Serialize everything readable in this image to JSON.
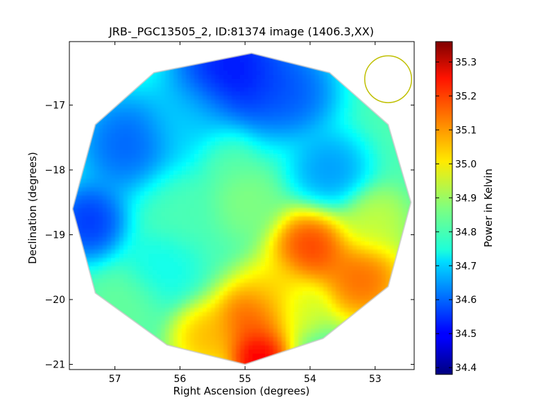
{
  "chart_data": {
    "type": "heatmap",
    "title": "JRB-_PGC13505_2, ID:81374 image (1406.3,XX)",
    "xlabel": "Right Ascension (degrees)",
    "ylabel": "Declination (degrees)",
    "xlim": [
      57.7,
      52.4
    ],
    "ylim": [
      -21.08,
      -16.02
    ],
    "x_ticks": [
      57,
      56,
      55,
      54,
      53
    ],
    "y_ticks": [
      -17,
      -18,
      -19,
      -20,
      -21
    ],
    "x_tick_labels": [
      "57",
      "56",
      "55",
      "54",
      "53"
    ],
    "y_tick_labels": [
      "−17",
      "−18",
      "−19",
      "−20",
      "−21"
    ],
    "grid": false,
    "colormap": "jet",
    "colorbar": {
      "label": "Power in Kelvin",
      "range": [
        34.38,
        35.36
      ],
      "ticks": [
        35.3,
        35.2,
        35.1,
        35.0,
        34.9,
        34.8,
        34.7,
        34.6,
        34.5,
        34.4
      ],
      "tick_labels": [
        "35.3",
        "35.2",
        "35.1",
        "35.0",
        "34.9",
        "34.8",
        "34.7",
        "34.6",
        "34.5",
        "34.4"
      ]
    },
    "footprint": {
      "shape": "dodecagon",
      "vertices": [
        [
          54.9,
          -16.2
        ],
        [
          53.7,
          -16.5
        ],
        [
          52.8,
          -17.3
        ],
        [
          52.45,
          -18.5
        ],
        [
          52.8,
          -19.8
        ],
        [
          53.8,
          -20.6
        ],
        [
          55.0,
          -21.0
        ],
        [
          56.2,
          -20.7
        ],
        [
          57.3,
          -19.9
        ],
        [
          57.65,
          -18.6
        ],
        [
          57.3,
          -17.3
        ],
        [
          56.4,
          -16.5
        ]
      ]
    },
    "beam": {
      "ra": 52.8,
      "dec": -16.6,
      "radius_deg": 0.36,
      "color": "#bfbf00"
    },
    "field_blobs": [
      {
        "ra": 55.2,
        "dec": -16.5,
        "temp": 34.45,
        "spread": 0.7
      },
      {
        "ra": 54.3,
        "dec": -16.8,
        "temp": 34.55,
        "spread": 0.55
      },
      {
        "ra": 56.8,
        "dec": -17.6,
        "temp": 34.55,
        "spread": 0.6
      },
      {
        "ra": 57.4,
        "dec": -18.8,
        "temp": 34.5,
        "spread": 0.45
      },
      {
        "ra": 53.7,
        "dec": -18.0,
        "temp": 34.62,
        "spread": 0.45
      },
      {
        "ra": 55.8,
        "dec": -17.3,
        "temp": 34.7,
        "spread": 0.55
      },
      {
        "ra": 56.0,
        "dec": -18.6,
        "temp": 34.82,
        "spread": 0.5
      },
      {
        "ra": 55.3,
        "dec": -17.8,
        "temp": 34.85,
        "spread": 0.35
      },
      {
        "ra": 55.0,
        "dec": -18.5,
        "temp": 34.88,
        "spread": 0.4
      },
      {
        "ra": 56.3,
        "dec": -19.5,
        "temp": 34.75,
        "spread": 0.45
      },
      {
        "ra": 56.8,
        "dec": -20.0,
        "temp": 34.85,
        "spread": 0.4
      },
      {
        "ra": 53.0,
        "dec": -18.8,
        "temp": 34.95,
        "spread": 0.4
      },
      {
        "ra": 54.0,
        "dec": -19.2,
        "temp": 35.25,
        "spread": 0.45
      },
      {
        "ra": 53.2,
        "dec": -19.7,
        "temp": 35.2,
        "spread": 0.5
      },
      {
        "ra": 54.9,
        "dec": -20.3,
        "temp": 35.22,
        "spread": 0.45
      },
      {
        "ra": 54.8,
        "dec": -20.9,
        "temp": 35.35,
        "spread": 0.35
      },
      {
        "ra": 54.1,
        "dec": -20.1,
        "temp": 34.95,
        "spread": 0.3
      },
      {
        "ra": 55.6,
        "dec": -20.6,
        "temp": 35.1,
        "spread": 0.4
      },
      {
        "ra": 54.5,
        "dec": -19.9,
        "temp": 35.05,
        "spread": 0.45
      }
    ],
    "background_temp": 34.82
  }
}
